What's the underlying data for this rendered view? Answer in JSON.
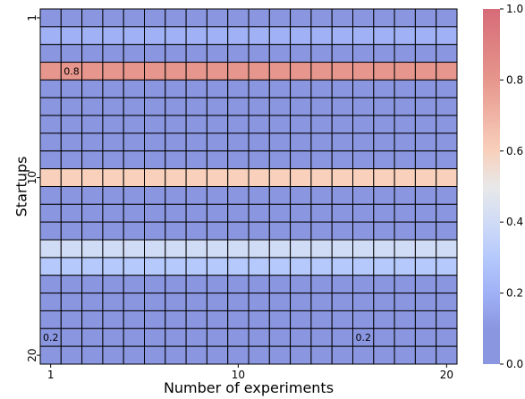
{
  "chart_data": {
    "type": "heatmap",
    "xlabel": "Number of experiments",
    "ylabel": "Startups",
    "x_tick_labels": [
      "1",
      "10",
      "20"
    ],
    "x_tick_columns": [
      1,
      10,
      20
    ],
    "y_tick_labels": [
      "1",
      "10",
      "20"
    ],
    "y_tick_rows": [
      1,
      10,
      20
    ],
    "columns": 20,
    "rows": 20,
    "row_values": [
      0.1,
      0.2,
      0.1,
      0.8,
      0.1,
      0.1,
      0.1,
      0.1,
      0.1,
      0.6,
      0.1,
      0.1,
      0.1,
      0.4,
      0.3,
      0.1,
      0.1,
      0.1,
      0.1,
      0.1
    ],
    "annotations": [
      {
        "row": 4,
        "col": 2,
        "text": "0.8"
      },
      {
        "row": 19,
        "col": 1,
        "text": "0.2"
      },
      {
        "row": 19,
        "col": 16,
        "text": "0.2"
      }
    ],
    "colorbar": {
      "colormap": "coolwarm",
      "range": [
        0.0,
        1.0
      ],
      "tick_values": [
        0.0,
        0.2,
        0.4,
        0.6,
        0.8,
        1.0
      ],
      "tick_labels": [
        "0.0",
        "0.2",
        "0.4",
        "0.6",
        "0.8",
        "1.0"
      ]
    },
    "grid_color": "#000000"
  }
}
